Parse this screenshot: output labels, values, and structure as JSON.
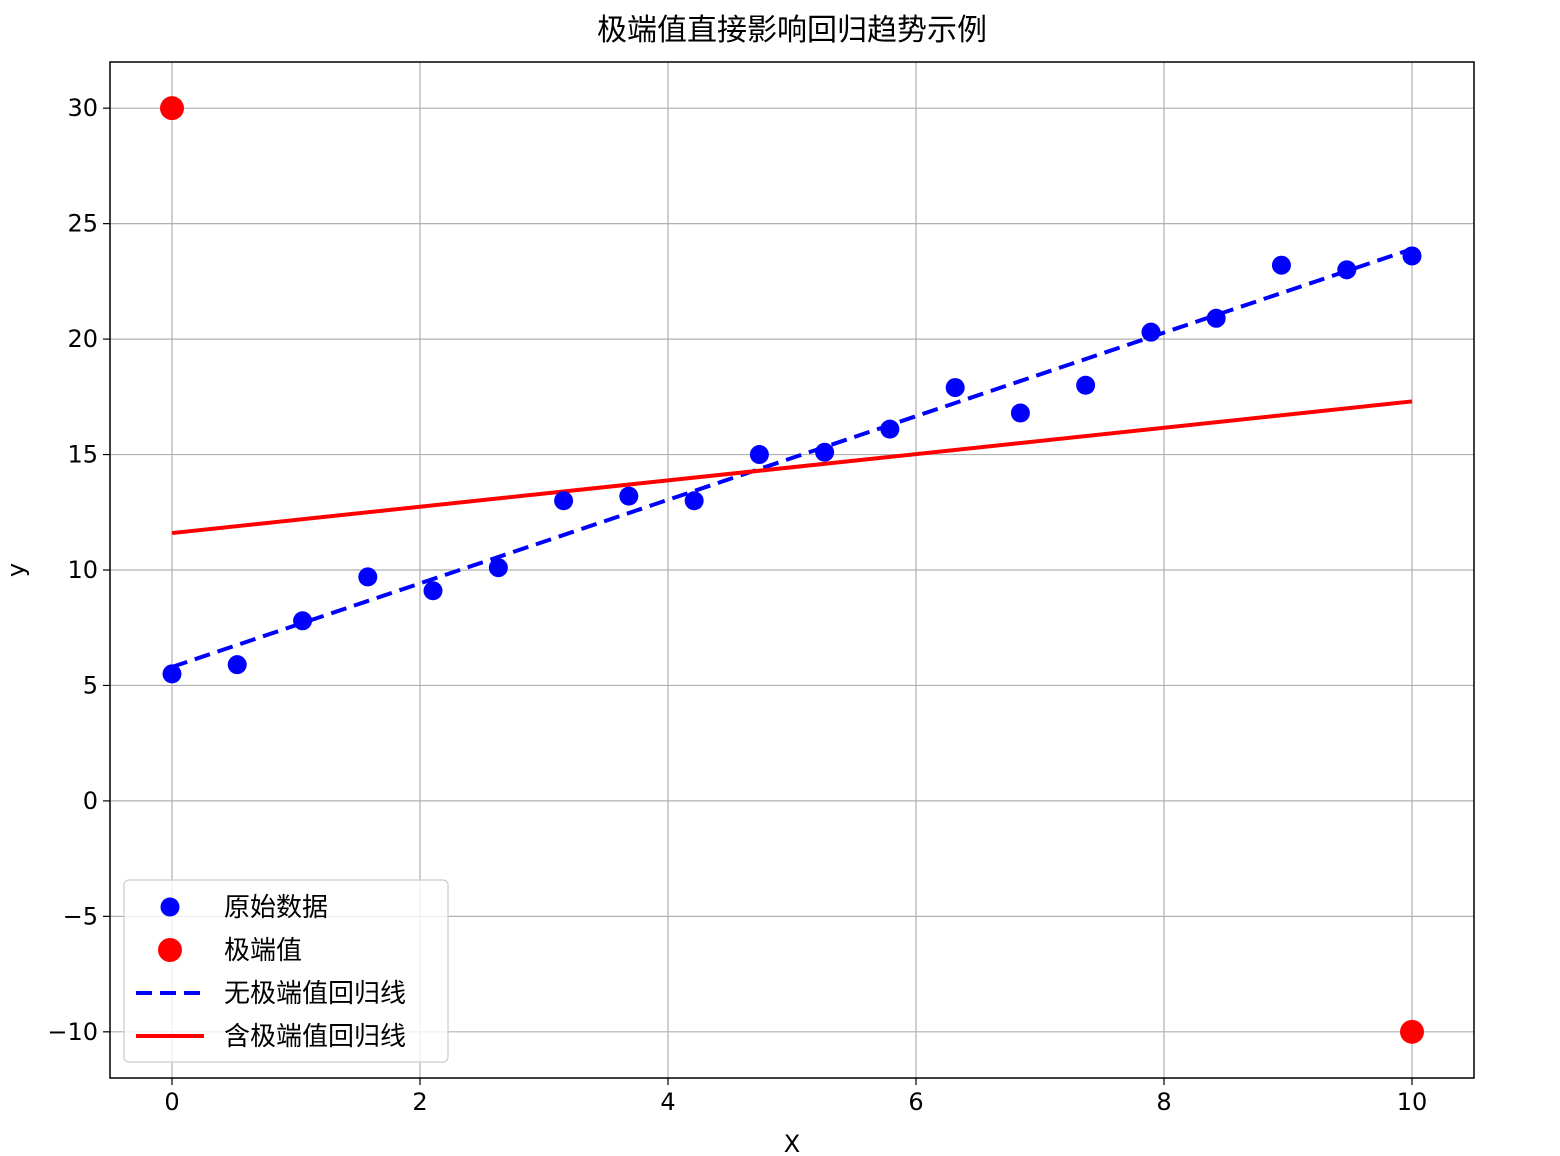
{
  "chart_data": {
    "type": "scatter",
    "title": "极端值直接影响回归趋势示例",
    "xlabel": "X",
    "ylabel": "y",
    "xlim": [
      -0.5,
      10.5
    ],
    "ylim": [
      -12,
      32
    ],
    "xticks": [
      0,
      2,
      4,
      6,
      8,
      10
    ],
    "yticks": [
      -10,
      -5,
      0,
      5,
      10,
      15,
      20,
      25,
      30
    ],
    "grid": true,
    "legend_position": "lower-left",
    "series": [
      {
        "name": "原始数据",
        "kind": "points",
        "color": "#0000ff",
        "x": [
          0.0,
          0.526,
          1.053,
          1.579,
          2.105,
          2.632,
          3.158,
          3.684,
          4.211,
          4.737,
          5.263,
          5.789,
          6.316,
          6.842,
          7.368,
          7.895,
          8.421,
          8.947,
          9.474,
          10.0
        ],
        "y": [
          5.5,
          5.9,
          7.8,
          9.7,
          9.1,
          10.1,
          13.0,
          13.2,
          13.0,
          15.0,
          15.1,
          16.1,
          17.9,
          16.8,
          18.0,
          20.3,
          20.9,
          23.2,
          23.0,
          23.6
        ]
      },
      {
        "name": "极端值",
        "kind": "points",
        "color": "#ff0000",
        "x": [
          0,
          10
        ],
        "y": [
          30,
          -10
        ]
      },
      {
        "name": "无极端值回归线",
        "kind": "line",
        "style": "dashed",
        "color": "#0000ff",
        "x": [
          0,
          10
        ],
        "y": [
          5.8,
          23.9
        ]
      },
      {
        "name": "含极端值回归线",
        "kind": "line",
        "style": "solid",
        "color": "#ff0000",
        "x": [
          0,
          10
        ],
        "y": [
          11.6,
          17.3
        ]
      }
    ]
  }
}
